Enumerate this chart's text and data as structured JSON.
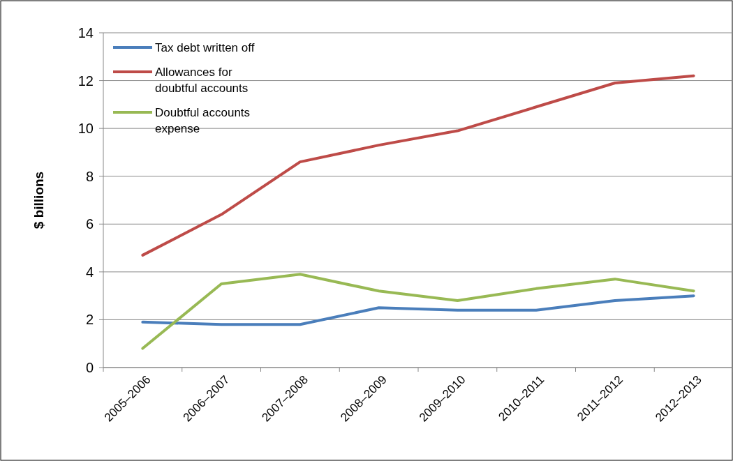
{
  "chart_data": {
    "type": "line",
    "ylabel": "$ billions",
    "categories": [
      "2005–2006",
      "2006–2007",
      "2007–2008",
      "2008–2009",
      "2009–2010",
      "2010–2011",
      "2011–2012",
      "2012–2013"
    ],
    "series": [
      {
        "name": "Tax debt written off",
        "color": "#4a7ebb",
        "values": [
          1.9,
          1.8,
          1.8,
          2.5,
          2.4,
          2.4,
          2.8,
          3.0
        ]
      },
      {
        "name": "Allowances for doubtful accounts",
        "color": "#be4b48",
        "values": [
          4.7,
          6.4,
          8.6,
          9.3,
          9.9,
          10.9,
          11.9,
          12.2
        ]
      },
      {
        "name": "Doubtful accounts expense",
        "color": "#98b954",
        "values": [
          0.8,
          3.5,
          3.9,
          3.2,
          2.8,
          3.3,
          3.7,
          3.2
        ]
      }
    ],
    "ylim": [
      0,
      14
    ],
    "yticks": [
      0,
      2,
      4,
      6,
      8,
      10,
      12,
      14
    ],
    "grid": "y",
    "legend": "top left",
    "marker": "none",
    "line_style": "solid"
  }
}
